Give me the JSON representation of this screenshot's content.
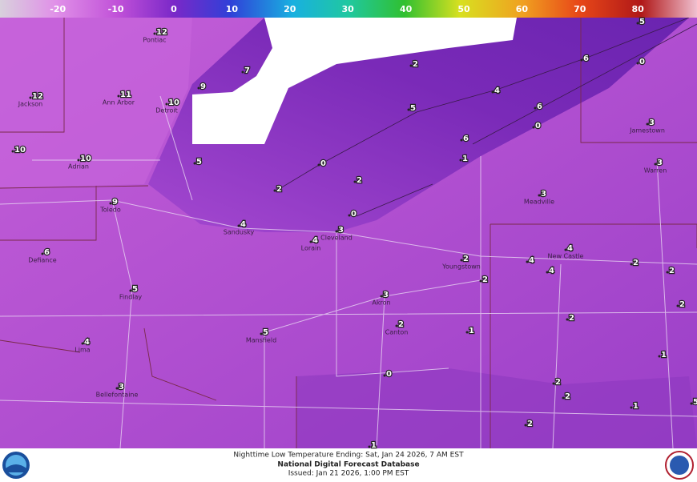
{
  "colorbar": {
    "ticks": [
      -20,
      -10,
      0,
      10,
      20,
      30,
      40,
      50,
      60,
      70,
      80
    ]
  },
  "points": [
    {
      "value": 12,
      "name": "Pontiac"
    },
    {
      "value": 12,
      "name": "Jackson"
    },
    {
      "value": 11,
      "name": "Ann Arbor"
    },
    {
      "value": 10,
      "name": "Detroit"
    },
    {
      "value": 10
    },
    {
      "value": 10,
      "name": "Adrian"
    },
    {
      "value": 9,
      "name": "Toledo"
    },
    {
      "value": 6,
      "name": "Defiance"
    },
    {
      "value": 5,
      "name": "Findlay"
    },
    {
      "value": 4,
      "name": "Lima"
    },
    {
      "value": 5,
      "name": "Mansfield"
    },
    {
      "value": 3,
      "name": "Bellefontaine"
    },
    {
      "value": 4,
      "name": "Sandusky"
    },
    {
      "value": 4,
      "name": "Lorain"
    },
    {
      "value": 3,
      "name": "Cleveland"
    },
    {
      "value": 3,
      "name": "Akron"
    },
    {
      "value": 2,
      "name": "Canton"
    },
    {
      "value": 2,
      "name": "Youngstown"
    },
    {
      "value": 3,
      "name": "Warren"
    },
    {
      "value": 3,
      "name": "Jamestown"
    },
    {
      "value": 3,
      "name": "Meadville"
    },
    {
      "value": 4,
      "name": "New Castle"
    },
    {
      "value": 7
    },
    {
      "value": 9
    },
    {
      "value": 5
    },
    {
      "value": 2
    },
    {
      "value": 0
    },
    {
      "value": 2
    },
    {
      "value": 0
    },
    {
      "value": 2
    },
    {
      "value": 5
    },
    {
      "value": 4
    },
    {
      "value": 6
    },
    {
      "value": 5
    },
    {
      "value": 0
    },
    {
      "value": 6
    },
    {
      "value": 6
    },
    {
      "value": 1
    },
    {
      "value": 0
    },
    {
      "value": 2
    },
    {
      "value": 4
    },
    {
      "value": 4
    },
    {
      "value": 2
    },
    {
      "value": 2
    },
    {
      "value": 2
    },
    {
      "value": 2
    },
    {
      "value": 1
    },
    {
      "value": 1
    },
    {
      "value": 0
    },
    {
      "value": 2
    },
    {
      "value": 2
    },
    {
      "value": 1
    },
    {
      "value": 2
    },
    {
      "value": 1
    },
    {
      "value": 5
    }
  ],
  "footer": {
    "line1": "Nighttime Low Temperature Ending: Sat, Jan 24 2026, 7 AM EST",
    "line2": "National Digital Forecast Database",
    "line3": "Issued: Jan 21 2026, 1:00 PM EST"
  }
}
